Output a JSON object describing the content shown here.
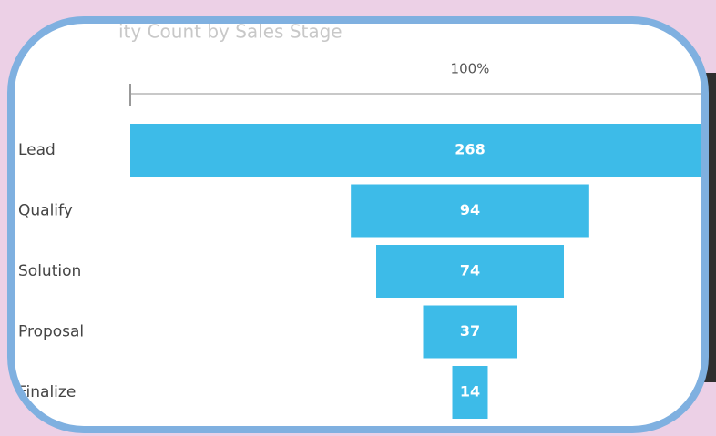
{
  "chart_data": {
    "type": "funnel",
    "title": "ity Count by Sales Stage",
    "categories": [
      "Lead",
      "Qualify",
      "Solution",
      "Proposal",
      "Finalize"
    ],
    "values": [
      268,
      94,
      74,
      37,
      14
    ],
    "color": "#3dbbe8",
    "top_percent": {
      "value": 100,
      "label": "100%"
    }
  }
}
